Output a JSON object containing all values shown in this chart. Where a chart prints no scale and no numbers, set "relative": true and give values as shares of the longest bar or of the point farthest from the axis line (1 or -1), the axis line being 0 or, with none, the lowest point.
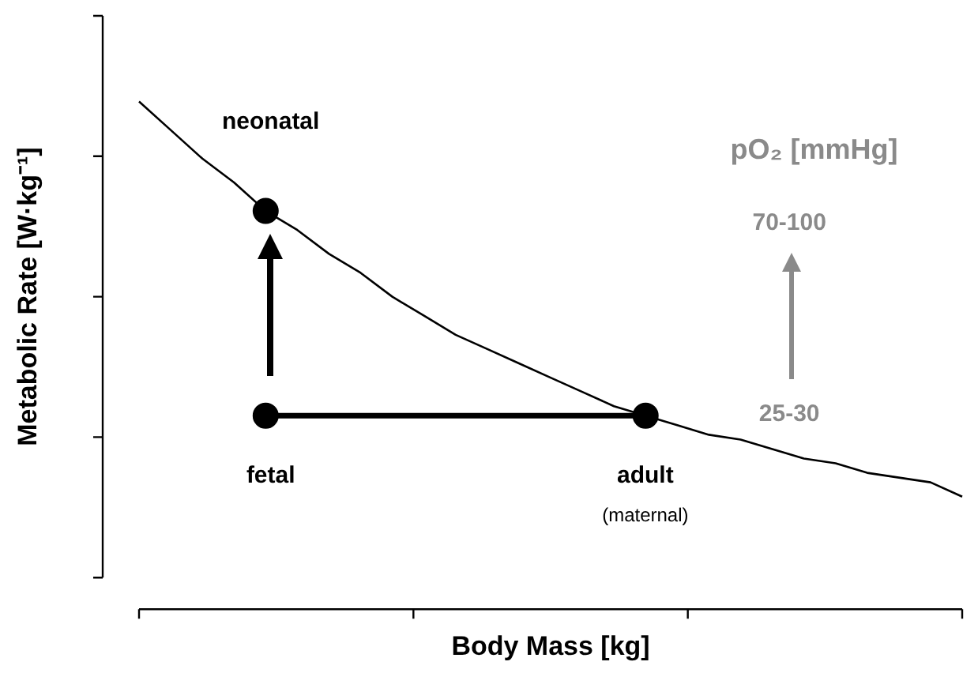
{
  "chart_data": {
    "type": "line",
    "relative": true,
    "tick_labels": false,
    "xlabel": "Body Mass [kg]",
    "ylabel": "Metabolic Rate [W·kg⁻¹]",
    "categories": [
      null,
      null,
      null,
      null,
      null,
      null,
      null,
      null,
      null,
      null,
      null,
      null,
      null,
      null,
      null,
      null,
      null,
      null,
      null,
      null,
      null,
      null,
      null,
      null,
      null,
      null,
      null
    ],
    "series": [
      {
        "marker": "none",
        "color": "#000000",
        "values": [
          1.0,
          0.94,
          0.88,
          0.83,
          0.77,
          0.73,
          0.68,
          0.64,
          0.59,
          0.55,
          0.51,
          0.48,
          0.45,
          0.42,
          0.39,
          0.36,
          0.34,
          0.32,
          0.3,
          0.29,
          0.27,
          0.25,
          0.24,
          0.22,
          0.21,
          0.2,
          0.17
        ]
      },
      {
        "type": "line",
        "marker": "circle",
        "color": "#000000",
        "values": [
          null,
          null,
          null,
          null,
          0.77,
          null,
          null,
          null,
          null,
          null,
          null,
          null,
          null,
          null,
          null,
          null,
          null,
          null,
          null,
          null,
          null,
          null,
          null,
          null,
          null,
          null,
          null
        ]
      },
      {
        "type": "line",
        "marker": "circle",
        "color": "#000000",
        "values": [
          null,
          null,
          null,
          null,
          0.34,
          null,
          null,
          null,
          null,
          null,
          null,
          null,
          null,
          null,
          null,
          null,
          0.34,
          null,
          null,
          null,
          null,
          null,
          null,
          null,
          null,
          null,
          null
        ]
      }
    ],
    "annotations": [
      "neonatal",
      "fetal",
      "adult",
      "(maternal)",
      "pO₂ [mmHg]",
      "70-100",
      "25-30"
    ]
  }
}
